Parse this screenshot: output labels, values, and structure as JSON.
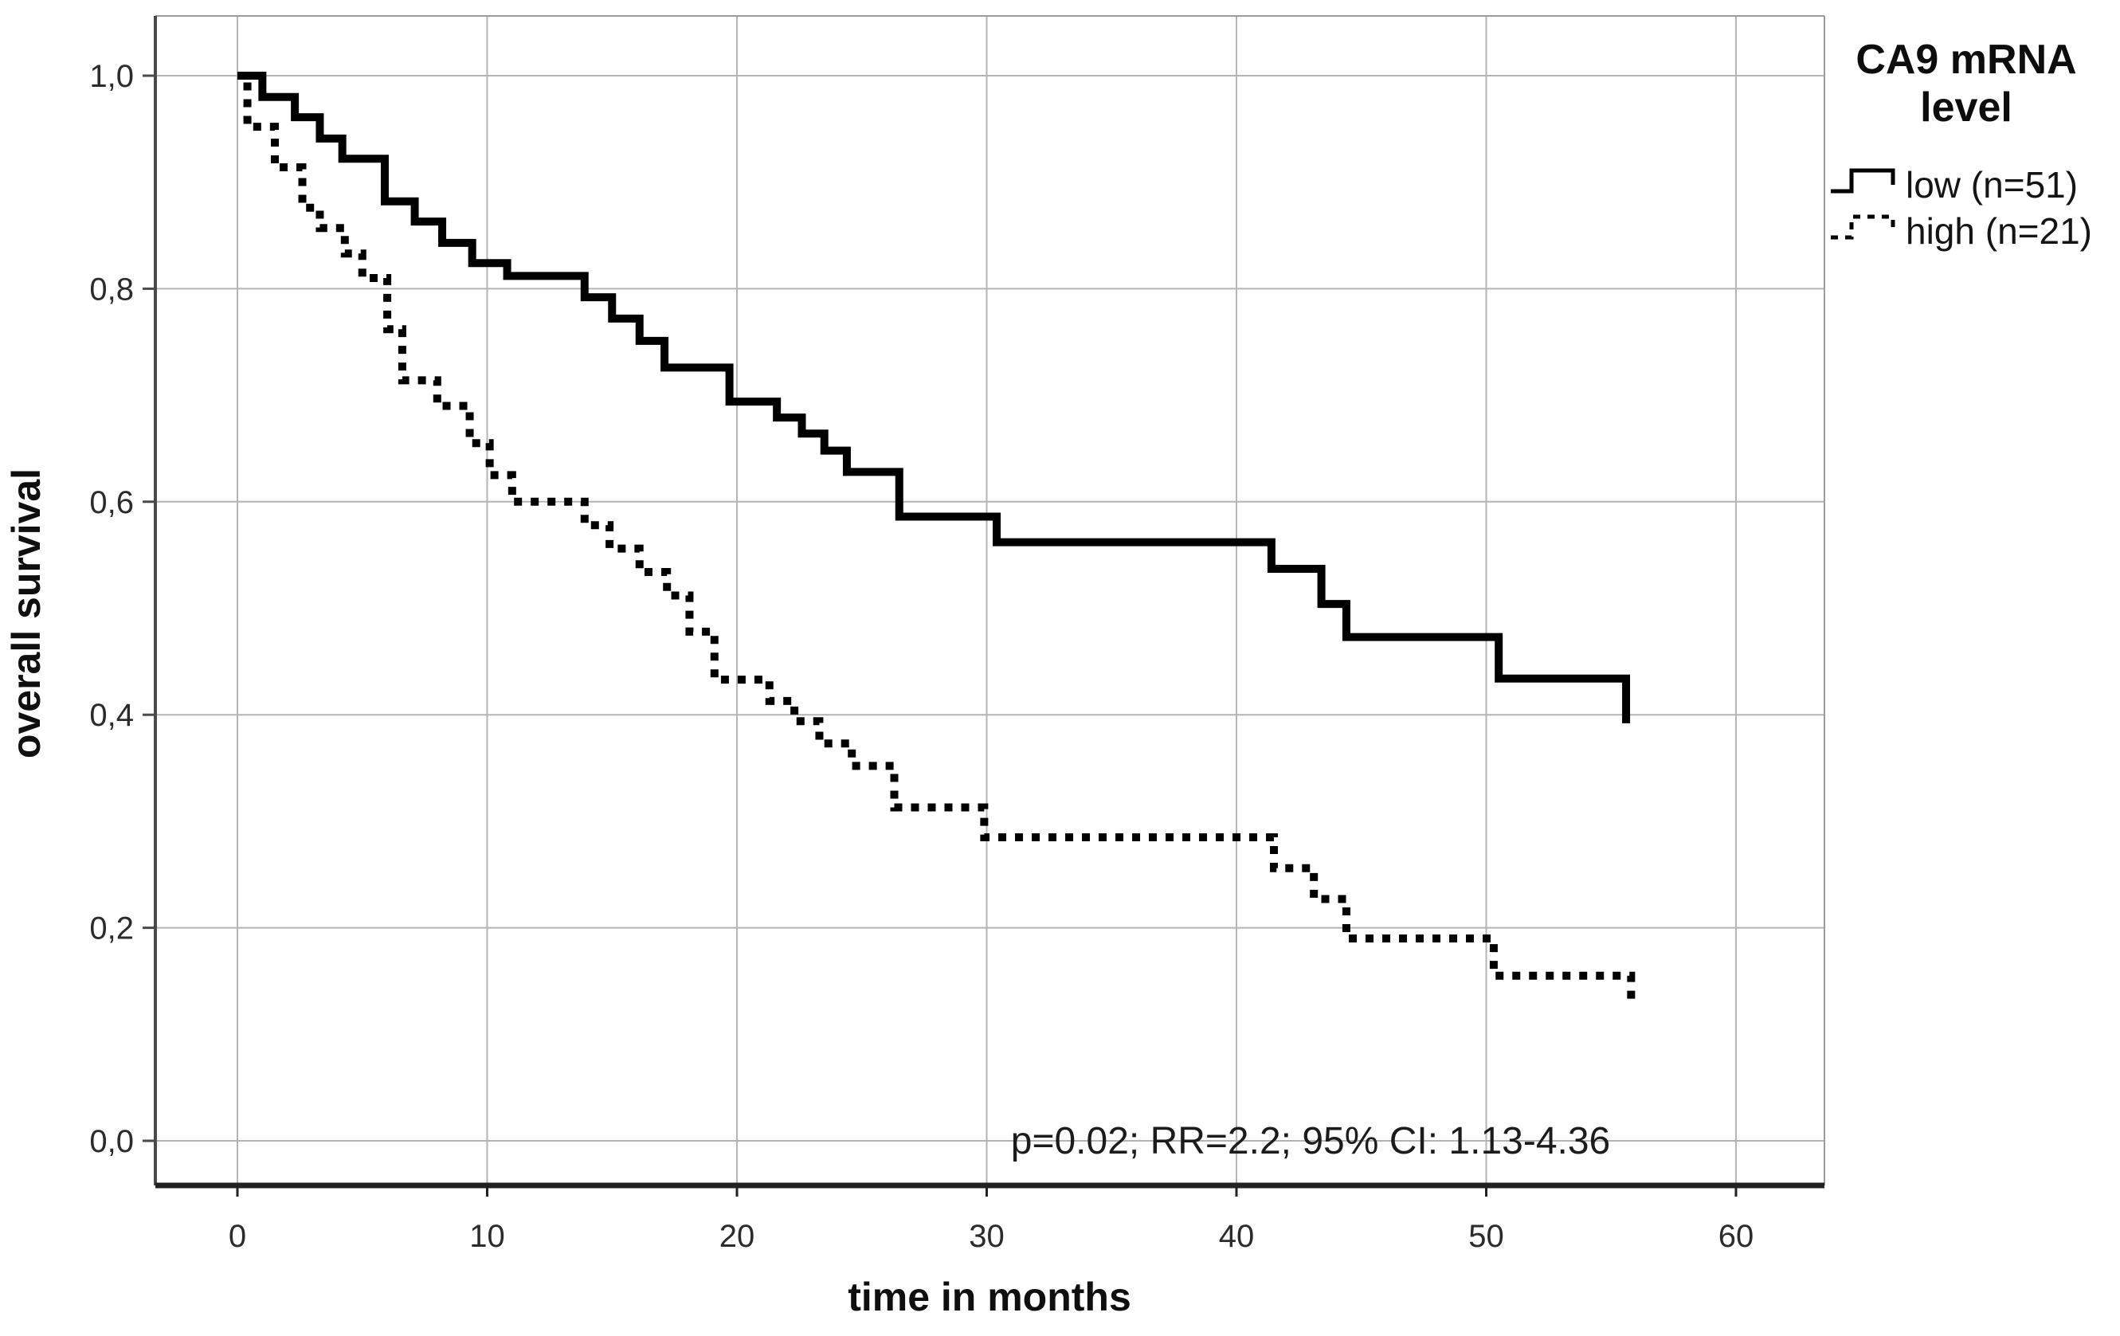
{
  "chart_data": {
    "type": "line",
    "subtype": "kaplan_meier_step",
    "title": "",
    "xlabel": "time in months",
    "ylabel": "overall survival",
    "grid": true,
    "xlim": [
      -3.3,
      63.5
    ],
    "ylim": [
      -0.04,
      1.06
    ],
    "x_ticks": {
      "values": [
        0,
        10,
        20,
        30,
        40,
        50,
        60
      ],
      "labels": [
        "0",
        "10",
        "20",
        "30",
        "40",
        "50",
        "60"
      ]
    },
    "y_ticks": {
      "values": [
        1.0,
        0.8,
        0.6,
        0.4,
        0.2,
        0.0
      ],
      "labels": [
        "1,0",
        "0,8",
        "0,6",
        "0,4",
        "0,2",
        "0,0"
      ]
    },
    "annotation": "p=0.02; RR=2.2; 95% CI: 1.13-4.36",
    "legend": {
      "title": "CA9 mRNA level",
      "title_lines": [
        "CA9 mRNA",
        "level"
      ],
      "position": "outside-top-right",
      "items": [
        {
          "label": "low (n=51)",
          "style": "solid"
        },
        {
          "label": "high (n=21)",
          "style": "dashed"
        }
      ]
    },
    "series": [
      {
        "name": "low",
        "label": "low (n=51)",
        "n": 51,
        "style": "solid",
        "points": [
          [
            0,
            1.0
          ],
          [
            1.0,
            0.98
          ],
          [
            2.3,
            0.961
          ],
          [
            3.3,
            0.941
          ],
          [
            4.2,
            0.922
          ],
          [
            5.9,
            0.882
          ],
          [
            7.1,
            0.863
          ],
          [
            8.2,
            0.843
          ],
          [
            9.4,
            0.824
          ],
          [
            10.8,
            0.812
          ],
          [
            13.9,
            0.792
          ],
          [
            15.0,
            0.772
          ],
          [
            16.1,
            0.751
          ],
          [
            17.1,
            0.726
          ],
          [
            19.7,
            0.694
          ],
          [
            21.6,
            0.679
          ],
          [
            22.6,
            0.664
          ],
          [
            23.5,
            0.648
          ],
          [
            24.4,
            0.628
          ],
          [
            26.5,
            0.586
          ],
          [
            30.4,
            0.562
          ],
          [
            41.4,
            0.537
          ],
          [
            43.4,
            0.504
          ],
          [
            44.4,
            0.473
          ],
          [
            50.5,
            0.434
          ],
          [
            55.6,
            0.392
          ]
        ]
      },
      {
        "name": "high",
        "label": "high (n=21)",
        "n": 21,
        "style": "dashed",
        "points": [
          [
            0,
            1.0
          ],
          [
            0.4,
            0.952
          ],
          [
            1.5,
            0.914
          ],
          [
            2.6,
            0.876
          ],
          [
            3.3,
            0.857
          ],
          [
            4.3,
            0.833
          ],
          [
            5.0,
            0.81
          ],
          [
            6.0,
            0.762
          ],
          [
            6.6,
            0.714
          ],
          [
            8.0,
            0.69
          ],
          [
            9.3,
            0.655
          ],
          [
            10.1,
            0.625
          ],
          [
            11.0,
            0.6
          ],
          [
            13.9,
            0.578
          ],
          [
            14.9,
            0.556
          ],
          [
            16.1,
            0.534
          ],
          [
            17.2,
            0.512
          ],
          [
            18.1,
            0.478
          ],
          [
            19.1,
            0.433
          ],
          [
            21.3,
            0.413
          ],
          [
            22.3,
            0.394
          ],
          [
            23.3,
            0.373
          ],
          [
            24.6,
            0.352
          ],
          [
            26.3,
            0.313
          ],
          [
            29.9,
            0.285
          ],
          [
            41.5,
            0.256
          ],
          [
            43.1,
            0.227
          ],
          [
            44.4,
            0.19
          ],
          [
            50.3,
            0.155
          ],
          [
            55.8,
            0.132
          ]
        ]
      }
    ],
    "colors": {
      "curve": "#000000",
      "grid": "#b4b4b4",
      "frame_light": "#9b9b9b",
      "axis_left": "#4a4a4a",
      "axis_bottom": "#222222",
      "tick_text": "#2b2b2b"
    }
  }
}
